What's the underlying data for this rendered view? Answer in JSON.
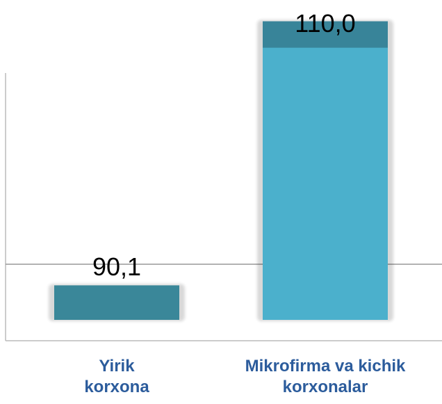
{
  "chart_data": {
    "type": "bar",
    "categories": [
      "Yirik korxona",
      "Mikrofirma va kichik korxonalar"
    ],
    "values": [
      90.1,
      110.0
    ],
    "value_labels": [
      "90,1",
      "110,0"
    ],
    "colors": [
      "#3a8799",
      "#4bb0cc"
    ],
    "ylim": [
      87.5,
      111.5
    ]
  }
}
